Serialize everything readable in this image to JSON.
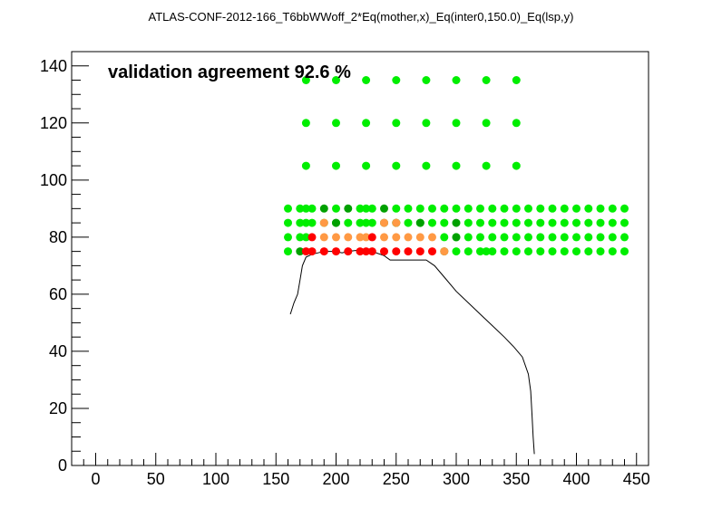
{
  "chart_data": {
    "type": "scatter",
    "title": "ATLAS-CONF-2012-166_T6bbWWoff_2*Eq(mother,x)_Eq(inter0,150.0)_Eq(lsp,y)",
    "annotation": "validation agreement 92.6 %",
    "xlabel": "",
    "ylabel": "",
    "xlim": [
      -20,
      460
    ],
    "ylim": [
      0,
      145
    ],
    "x_ticks": [
      0,
      50,
      100,
      150,
      200,
      250,
      300,
      350,
      400,
      450
    ],
    "y_ticks": [
      0,
      20,
      40,
      60,
      80,
      100,
      120,
      140
    ],
    "grid": false,
    "colors": {
      "bright_green": "#00ee00",
      "dark_green": "#00a000",
      "orange": "#ff9944",
      "red": "#ff0000",
      "line": "#000000"
    },
    "series": [
      {
        "color_key": "bright_green",
        "points": [
          [
            175,
            135
          ],
          [
            200,
            135
          ],
          [
            225,
            135
          ],
          [
            250,
            135
          ],
          [
            275,
            135
          ],
          [
            300,
            135
          ],
          [
            325,
            135
          ],
          [
            350,
            135
          ],
          [
            175,
            120
          ],
          [
            200,
            120
          ],
          [
            225,
            120
          ],
          [
            250,
            120
          ],
          [
            275,
            120
          ],
          [
            300,
            120
          ],
          [
            325,
            120
          ],
          [
            350,
            120
          ],
          [
            175,
            105
          ],
          [
            200,
            105
          ],
          [
            225,
            105
          ],
          [
            250,
            105
          ],
          [
            275,
            105
          ],
          [
            300,
            105
          ],
          [
            325,
            105
          ],
          [
            350,
            105
          ],
          [
            160,
            90
          ],
          [
            170,
            90
          ],
          [
            175,
            90
          ],
          [
            180,
            90
          ],
          [
            200,
            90
          ],
          [
            220,
            90
          ],
          [
            225,
            90
          ],
          [
            230,
            90
          ],
          [
            250,
            90
          ],
          [
            260,
            90
          ],
          [
            270,
            90
          ],
          [
            280,
            90
          ],
          [
            290,
            90
          ],
          [
            300,
            90
          ],
          [
            310,
            90
          ],
          [
            320,
            90
          ],
          [
            330,
            90
          ],
          [
            340,
            90
          ],
          [
            350,
            90
          ],
          [
            360,
            90
          ],
          [
            370,
            90
          ],
          [
            380,
            90
          ],
          [
            390,
            90
          ],
          [
            400,
            90
          ],
          [
            410,
            90
          ],
          [
            420,
            90
          ],
          [
            430,
            90
          ],
          [
            440,
            90
          ],
          [
            160,
            85
          ],
          [
            170,
            85
          ],
          [
            175,
            85
          ],
          [
            180,
            85
          ],
          [
            190,
            85
          ],
          [
            200,
            85
          ],
          [
            210,
            85
          ],
          [
            220,
            85
          ],
          [
            225,
            85
          ],
          [
            230,
            85
          ],
          [
            250,
            85
          ],
          [
            260,
            85
          ],
          [
            270,
            85
          ],
          [
            280,
            85
          ],
          [
            290,
            85
          ],
          [
            310,
            85
          ],
          [
            320,
            85
          ],
          [
            330,
            85
          ],
          [
            340,
            85
          ],
          [
            350,
            85
          ],
          [
            360,
            85
          ],
          [
            370,
            85
          ],
          [
            380,
            85
          ],
          [
            390,
            85
          ],
          [
            400,
            85
          ],
          [
            410,
            85
          ],
          [
            420,
            85
          ],
          [
            430,
            85
          ],
          [
            440,
            85
          ],
          [
            160,
            80
          ],
          [
            170,
            80
          ],
          [
            175,
            80
          ],
          [
            290,
            80
          ],
          [
            300,
            80
          ],
          [
            310,
            80
          ],
          [
            320,
            80
          ],
          [
            330,
            80
          ],
          [
            340,
            80
          ],
          [
            350,
            80
          ],
          [
            360,
            80
          ],
          [
            370,
            80
          ],
          [
            380,
            80
          ],
          [
            390,
            80
          ],
          [
            400,
            80
          ],
          [
            410,
            80
          ],
          [
            420,
            80
          ],
          [
            430,
            80
          ],
          [
            440,
            80
          ],
          [
            160,
            75
          ],
          [
            300,
            75
          ],
          [
            310,
            75
          ],
          [
            320,
            75
          ],
          [
            325,
            75
          ],
          [
            330,
            75
          ],
          [
            340,
            75
          ],
          [
            350,
            75
          ],
          [
            360,
            75
          ],
          [
            370,
            75
          ],
          [
            380,
            75
          ],
          [
            390,
            75
          ],
          [
            400,
            75
          ],
          [
            410,
            75
          ],
          [
            420,
            75
          ],
          [
            430,
            75
          ],
          [
            440,
            75
          ]
        ]
      },
      {
        "color_key": "dark_green",
        "points": [
          [
            190,
            90
          ],
          [
            210,
            90
          ],
          [
            240,
            90
          ],
          [
            200,
            85
          ],
          [
            240,
            85
          ],
          [
            250,
            85
          ],
          [
            270,
            85
          ],
          [
            300,
            85
          ],
          [
            300,
            80
          ],
          [
            170,
            75
          ],
          [
            290,
            75
          ]
        ]
      },
      {
        "color_key": "orange",
        "points": [
          [
            190,
            85
          ],
          [
            240,
            85
          ],
          [
            250,
            85
          ],
          [
            190,
            80
          ],
          [
            200,
            80
          ],
          [
            210,
            80
          ],
          [
            220,
            80
          ],
          [
            225,
            80
          ],
          [
            240,
            80
          ],
          [
            250,
            80
          ],
          [
            260,
            80
          ],
          [
            270,
            80
          ],
          [
            280,
            80
          ],
          [
            290,
            75
          ]
        ]
      },
      {
        "color_key": "red",
        "points": [
          [
            180,
            80
          ],
          [
            230,
            80
          ],
          [
            175,
            75
          ],
          [
            180,
            75
          ],
          [
            190,
            75
          ],
          [
            200,
            75
          ],
          [
            210,
            75
          ],
          [
            220,
            75
          ],
          [
            225,
            75
          ],
          [
            230,
            75
          ],
          [
            240,
            75
          ],
          [
            250,
            75
          ],
          [
            260,
            75
          ],
          [
            270,
            75
          ],
          [
            280,
            75
          ]
        ]
      }
    ],
    "curve": [
      [
        162,
        53
      ],
      [
        165,
        57
      ],
      [
        168,
        60
      ],
      [
        170,
        65
      ],
      [
        172,
        70
      ],
      [
        175,
        73
      ],
      [
        180,
        74
      ],
      [
        185,
        74.5
      ],
      [
        190,
        75
      ],
      [
        195,
        75
      ],
      [
        200,
        75
      ],
      [
        205,
        74.5
      ],
      [
        210,
        75
      ],
      [
        220,
        75.5
      ],
      [
        230,
        75
      ],
      [
        240,
        73.5
      ],
      [
        245,
        72
      ],
      [
        250,
        72
      ],
      [
        265,
        72
      ],
      [
        275,
        72
      ],
      [
        282,
        70
      ],
      [
        290,
        66
      ],
      [
        300,
        61
      ],
      [
        310,
        57
      ],
      [
        320,
        53
      ],
      [
        330,
        49
      ],
      [
        340,
        45
      ],
      [
        348,
        41.5
      ],
      [
        355,
        38
      ],
      [
        360,
        32
      ],
      [
        362,
        26
      ],
      [
        363,
        18
      ],
      [
        364,
        10
      ],
      [
        365,
        4
      ]
    ]
  }
}
